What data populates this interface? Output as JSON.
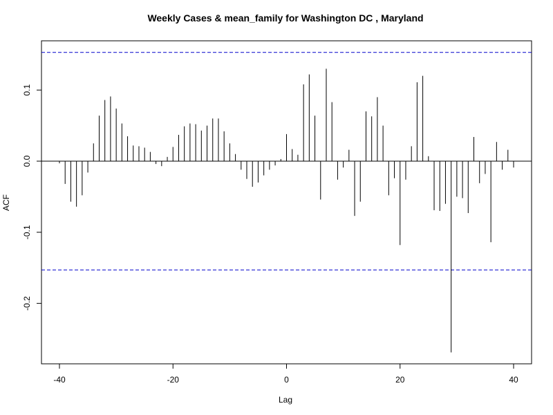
{
  "chart_data": {
    "type": "bar",
    "subtype": "ccf-stem",
    "title": "Weekly Cases & mean_family for Washington DC , Maryland",
    "xlabel": "Lag",
    "ylabel": "ACF",
    "xlim": [
      -40,
      40
    ],
    "ylim": [
      -0.27,
      0.155
    ],
    "xticks": [
      -40,
      -20,
      0,
      20,
      40
    ],
    "xtick_labels": [
      "-40",
      "-20",
      "0",
      "20",
      "40"
    ],
    "yticks": [
      -0.2,
      -0.1,
      0.0,
      0.1
    ],
    "ytick_labels": [
      "-0.2",
      "-0.1",
      "0.0",
      "0.1"
    ],
    "confidence_limit": 0.153,
    "grid": false,
    "colors": {
      "stems": "#000000",
      "confidence": "#0000cc",
      "zero_line": "#000000"
    },
    "x": [
      -40,
      -39,
      -38,
      -37,
      -36,
      -35,
      -34,
      -33,
      -32,
      -31,
      -30,
      -29,
      -28,
      -27,
      -26,
      -25,
      -24,
      -23,
      -22,
      -21,
      -20,
      -19,
      -18,
      -17,
      -16,
      -15,
      -14,
      -13,
      -12,
      -11,
      -10,
      -9,
      -8,
      -7,
      -6,
      -5,
      -4,
      -3,
      -2,
      -1,
      0,
      1,
      2,
      3,
      4,
      5,
      6,
      7,
      8,
      9,
      10,
      11,
      12,
      13,
      14,
      15,
      16,
      17,
      18,
      19,
      20,
      21,
      22,
      23,
      24,
      25,
      26,
      27,
      28,
      29,
      30,
      31,
      32,
      33,
      34,
      35,
      36,
      37,
      38,
      39,
      40
    ],
    "values": [
      -0.003,
      -0.032,
      -0.057,
      -0.064,
      -0.048,
      -0.016,
      0.025,
      0.064,
      0.086,
      0.091,
      0.074,
      0.053,
      0.035,
      0.022,
      0.021,
      0.019,
      0.013,
      -0.004,
      -0.007,
      0.006,
      0.02,
      0.037,
      0.049,
      0.053,
      0.052,
      0.043,
      0.05,
      0.06,
      0.06,
      0.042,
      0.025,
      0.01,
      -0.012,
      -0.025,
      -0.036,
      -0.03,
      -0.02,
      -0.012,
      -0.006,
      0.003,
      0.038,
      0.017,
      0.009,
      0.108,
      0.122,
      0.064,
      -0.054,
      0.13,
      0.083,
      -0.026,
      -0.009,
      0.016,
      -0.077,
      -0.057,
      0.07,
      0.063,
      0.09,
      0.05,
      -0.048,
      -0.024,
      -0.118,
      -0.026,
      0.021,
      0.111,
      0.12,
      0.007,
      -0.069,
      -0.07,
      -0.06,
      -0.269,
      -0.05,
      -0.052,
      -0.073,
      0.034,
      -0.031,
      -0.018,
      -0.114,
      0.027,
      -0.012,
      0.016,
      -0.009
    ]
  }
}
